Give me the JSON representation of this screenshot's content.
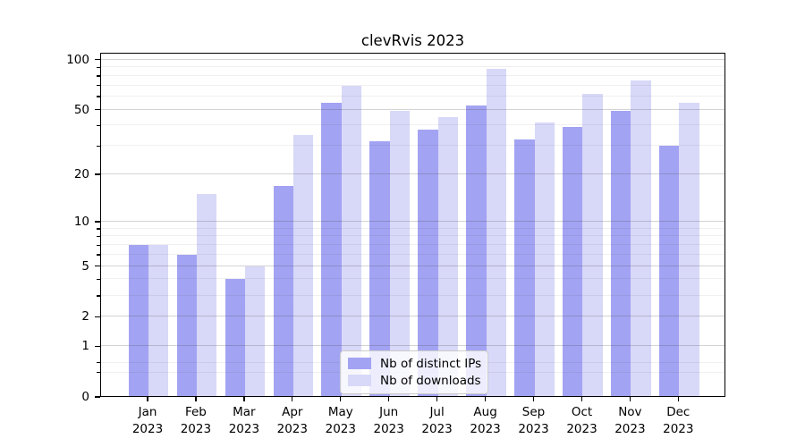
{
  "title": "clevRvis 2023",
  "background_color": "#ffffff",
  "chart_data": {
    "type": "bar",
    "title": "clevRvis 2023",
    "categories": [
      "Jan",
      "Feb",
      "Mar",
      "Apr",
      "May",
      "Jun",
      "Jul",
      "Aug",
      "Sep",
      "Oct",
      "Nov",
      "Dec"
    ],
    "year_label": "2023",
    "series": [
      {
        "name": "Nb of distinct IPs",
        "color": "#a3a3f3",
        "values": [
          7,
          6,
          4,
          17,
          55,
          32,
          38,
          53,
          33,
          39,
          49,
          30
        ]
      },
      {
        "name": "Nb of downloads",
        "color": "#d8d8f8",
        "values": [
          7,
          15,
          5,
          35,
          70,
          49,
          45,
          88,
          42,
          62,
          75,
          55
        ]
      }
    ],
    "yscale": "log1p",
    "ylim": [
      0,
      110
    ],
    "ytick_values": [
      0,
      1,
      2,
      5,
      10,
      20,
      50,
      100
    ],
    "ytick_labels": [
      "0",
      "1",
      "2",
      "5",
      "10",
      "20",
      "50",
      "100"
    ],
    "ytick_minor_values": [
      0.4,
      0.6,
      3,
      4,
      6,
      7,
      8,
      9,
      30,
      40,
      60,
      70,
      80,
      90
    ],
    "grid": "major+minor",
    "legend_position": "lower center",
    "spine_color": "#000000",
    "gridline_major_color": "#d4d4d4",
    "gridline_minor_color": "#efefef"
  }
}
